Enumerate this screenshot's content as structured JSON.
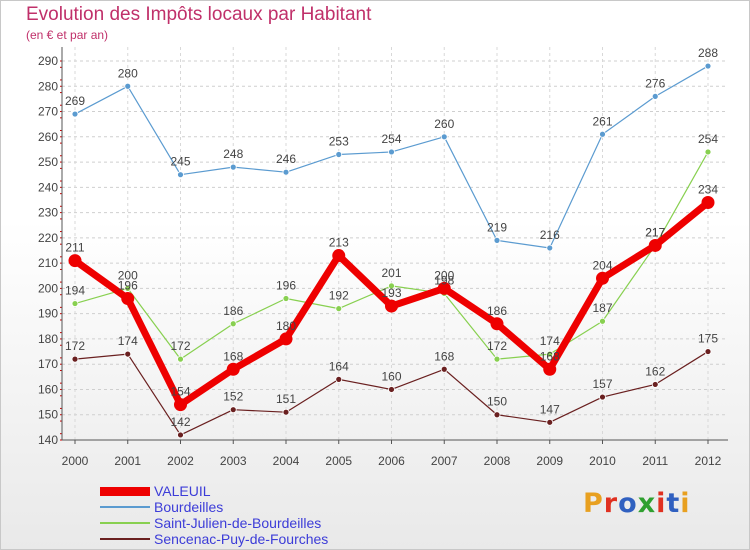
{
  "header": {
    "title": "Evolution des Impôts locaux par Habitant",
    "subtitle": "(en € et par an)"
  },
  "logo": {
    "text": "Proxiti",
    "colors": [
      "#e8a020",
      "#e03020",
      "#3060c0",
      "#30a030",
      "#e03020",
      "#3060c0",
      "#e8a020"
    ]
  },
  "chart_data": {
    "type": "line",
    "title": "Evolution des Impôts locaux par Habitant",
    "subtitle": "(en € et par an)",
    "xlabel": "",
    "ylabel": "",
    "categories": [
      "2000",
      "2001",
      "2002",
      "2003",
      "2004",
      "2005",
      "2006",
      "2007",
      "2008",
      "2009",
      "2010",
      "2011",
      "2012"
    ],
    "ylim": [
      140,
      290
    ],
    "yticks": [
      140,
      150,
      160,
      170,
      180,
      190,
      200,
      210,
      220,
      230,
      240,
      250,
      260,
      270,
      280,
      290
    ],
    "grid": "horizontal dashed",
    "legend_position": "bottom-left",
    "series": [
      {
        "name": "VALEUIL",
        "color": "#ee0000",
        "width": 7,
        "values": [
          211,
          196,
          154,
          168,
          180,
          213,
          193,
          200,
          186,
          168,
          204,
          217,
          234
        ]
      },
      {
        "name": "Bourdeilles",
        "color": "#5b9bd0",
        "width": 1.2,
        "values": [
          269,
          280,
          245,
          248,
          246,
          253,
          254,
          260,
          219,
          216,
          261,
          276,
          288
        ]
      },
      {
        "name": "Saint-Julien-de-Bourdeilles",
        "color": "#88d050",
        "width": 1.2,
        "values": [
          194,
          200,
          172,
          186,
          196,
          192,
          201,
          198,
          172,
          174,
          187,
          217,
          254
        ]
      },
      {
        "name": "Sencenac-Puy-de-Fourches",
        "color": "#6a2020",
        "width": 1.2,
        "values": [
          172,
          174,
          142,
          152,
          151,
          164,
          160,
          168,
          150,
          147,
          157,
          162,
          175
        ]
      }
    ]
  }
}
